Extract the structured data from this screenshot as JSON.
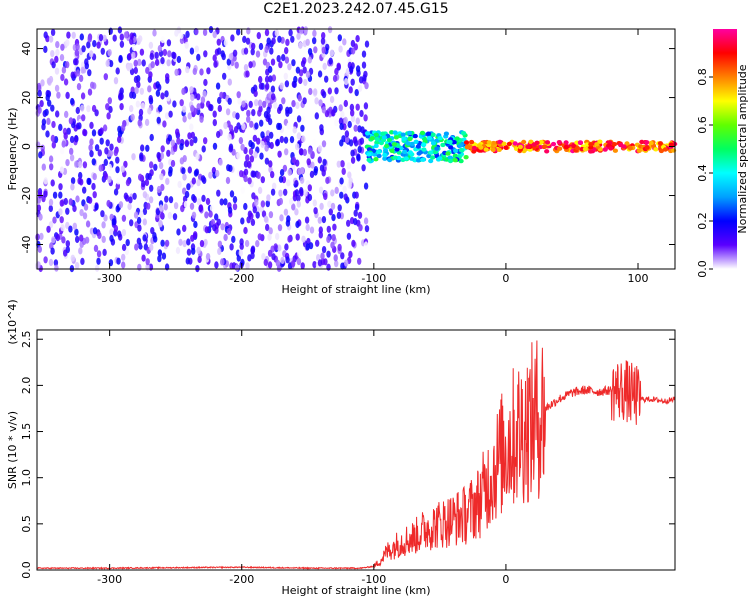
{
  "page": {
    "title": "C2E1.2023.242.07.45.G15"
  },
  "colors": {
    "snr_line": "#ee2a2a",
    "colorbar_stops": [
      "#ffffff",
      "#5a00ff",
      "#0000ff",
      "#00a0ff",
      "#00ffff",
      "#00ff60",
      "#60ff00",
      "#ffff00",
      "#ff8000",
      "#ff0000",
      "#ff00a0"
    ]
  },
  "chart_data": [
    {
      "type": "heatmap",
      "title": "",
      "xlabel": "Height of straight line (km)",
      "ylabel": "Frequency (Hz)",
      "xlim": [
        -355,
        128
      ],
      "ylim": [
        -50,
        48
      ],
      "x_ticks": [
        -300,
        -200,
        -100,
        0,
        100
      ],
      "y_ticks": [
        -40,
        -20,
        0,
        20,
        40
      ],
      "grid": false,
      "colorbar": {
        "label": "Normalized spectral amplitude",
        "range": [
          0,
          1
        ],
        "ticks": [
          "0.0",
          "0.2",
          "0.4",
          "0.6",
          "0.8"
        ]
      },
      "features": [
        {
          "region": "diffuse noise",
          "x_range": [
            -355,
            -105
          ],
          "y_range": [
            -50,
            48
          ],
          "amplitude_range": [
            0.0,
            0.2
          ]
        },
        {
          "region": "signal onset band",
          "x_range": [
            -105,
            -30
          ],
          "y_center": 0,
          "y_halfwidth": 6,
          "amplitude_range": [
            0.2,
            0.55
          ]
        },
        {
          "region": "carrier line",
          "x_range": [
            -30,
            128
          ],
          "y_center": 0,
          "y_halfwidth": 2,
          "amplitude_range": [
            0.7,
            1.0
          ]
        }
      ]
    },
    {
      "type": "line",
      "title": "",
      "xlabel": "Height of straight line (km)",
      "ylabel": "SNR (10 * v/v)",
      "y_multiplier": "(x10^4)",
      "xlim": [
        -355,
        128
      ],
      "ylim": [
        0,
        2.6
      ],
      "x_ticks": [
        -300,
        -200,
        -100,
        0
      ],
      "y_ticks": [
        0.0,
        0.5,
        1.0,
        1.5,
        2.0,
        2.5
      ],
      "grid": false,
      "series": [
        {
          "x": [
            -355,
            -300,
            -250,
            -200,
            -150,
            -110,
            -100,
            -95,
            -90,
            -80,
            -70,
            -60,
            -50,
            -40,
            -30,
            -20,
            -15,
            -10,
            -5,
            0,
            10,
            20,
            30,
            40,
            50,
            60,
            70,
            80,
            90,
            95,
            98,
            100,
            110,
            120,
            128
          ],
          "y": [
            0.02,
            0.02,
            0.025,
            0.03,
            0.02,
            0.02,
            0.04,
            0.1,
            0.2,
            0.3,
            0.35,
            0.45,
            0.5,
            0.55,
            0.6,
            0.75,
            0.9,
            1.05,
            1.2,
            1.35,
            1.5,
            1.6,
            1.75,
            1.85,
            1.92,
            1.95,
            1.93,
            1.95,
            1.95,
            1.9,
            1.9,
            1.85,
            1.85,
            1.83,
            1.85
          ]
        }
      ]
    }
  ]
}
